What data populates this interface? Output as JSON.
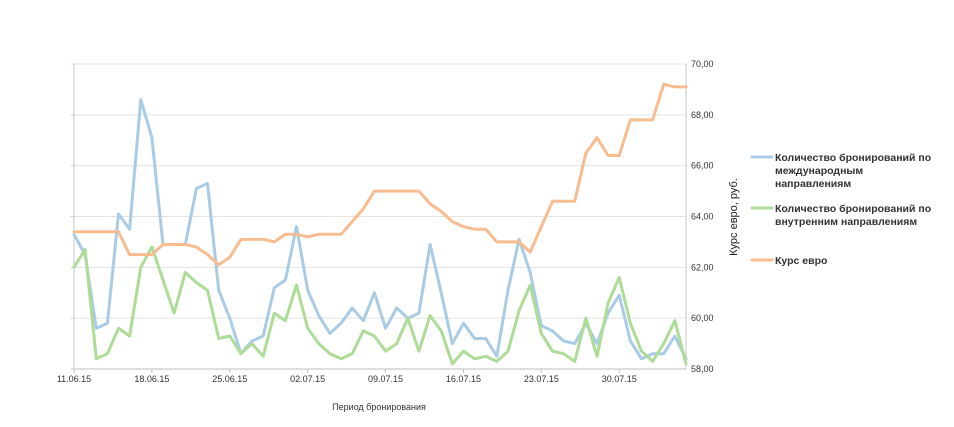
{
  "chart_data": {
    "type": "line",
    "xlabel": "Период бронирования",
    "y2label": "Курс евро, руб.",
    "y2lim": [
      58,
      70
    ],
    "y2ticks": [
      "58,00",
      "60,00",
      "62,00",
      "64,00",
      "66,00",
      "68,00",
      "70,00"
    ],
    "y2tick_values": [
      58,
      60,
      62,
      64,
      66,
      68,
      70
    ],
    "xtick_labels": [
      "11.06.15",
      "18.06.15",
      "25.06.15",
      "02.07.15",
      "09.07.15",
      "16.07.15",
      "23.07.15",
      "30.07.15"
    ],
    "xtick_index": [
      0,
      7,
      14,
      21,
      28,
      35,
      42,
      49
    ],
    "x_count": 56,
    "grid": "horizontal",
    "legend_position": "right",
    "series": [
      {
        "name": "Количество бронирований по международным направлениям",
        "legend_lines": [
          "Количество бронирований по",
          "международным",
          "направлениям"
        ],
        "color": "#a9cbe6",
        "axis": "primary",
        "values": [
          63.3,
          62.5,
          59.6,
          59.8,
          64.1,
          63.5,
          68.6,
          67.1,
          62.9,
          62.9,
          62.9,
          65.1,
          65.3,
          61.1,
          60.0,
          58.6,
          59.1,
          59.3,
          61.2,
          61.5,
          63.6,
          61.1,
          60.1,
          59.4,
          59.8,
          60.4,
          59.9,
          61.0,
          59.6,
          60.4,
          60.0,
          60.2,
          62.9,
          61.0,
          59.0,
          59.8,
          59.2,
          59.2,
          58.5,
          61.1,
          63.1,
          61.8,
          59.7,
          59.5,
          59.1,
          59.0,
          59.8,
          59.0,
          60.2,
          60.9,
          59.1,
          58.4,
          58.6,
          58.6,
          59.3,
          58.4
        ]
      },
      {
        "name": "Количество бронирований по внутренним направлениям",
        "legend_lines": [
          "Количество бронирований по",
          "внутренним направлениям"
        ],
        "color": "#addc97",
        "axis": "primary",
        "values": [
          62.0,
          62.7,
          58.4,
          58.6,
          59.6,
          59.3,
          62.0,
          62.8,
          61.5,
          60.2,
          61.8,
          61.4,
          61.1,
          59.2,
          59.3,
          58.6,
          59.0,
          58.5,
          60.2,
          59.9,
          61.3,
          59.6,
          59.0,
          58.6,
          58.4,
          58.6,
          59.5,
          59.3,
          58.7,
          59.0,
          60.0,
          58.7,
          60.1,
          59.5,
          58.2,
          58.7,
          58.4,
          58.5,
          58.3,
          58.7,
          60.3,
          61.3,
          59.4,
          58.7,
          58.6,
          58.3,
          60.0,
          58.5,
          60.6,
          61.6,
          59.8,
          58.7,
          58.3,
          59.0,
          59.9,
          58.2
        ]
      },
      {
        "name": "Курс евро",
        "legend_lines": [
          "Курс евро"
        ],
        "color": "#f9bc8f",
        "axis": "secondary",
        "values": [
          63.4,
          63.4,
          63.4,
          63.4,
          63.4,
          62.5,
          62.5,
          62.5,
          62.9,
          62.9,
          62.9,
          62.8,
          62.5,
          62.1,
          62.4,
          63.1,
          63.1,
          63.1,
          63.0,
          63.3,
          63.3,
          63.2,
          63.3,
          63.3,
          63.3,
          63.8,
          64.3,
          65.0,
          65.0,
          65.0,
          65.0,
          65.0,
          64.5,
          64.2,
          63.8,
          63.6,
          63.5,
          63.5,
          63.0,
          63.0,
          63.0,
          62.6,
          63.6,
          64.6,
          64.6,
          64.6,
          66.5,
          67.1,
          66.4,
          66.4,
          67.8,
          67.8,
          67.8,
          69.2,
          69.1,
          69.1
        ]
      }
    ]
  }
}
